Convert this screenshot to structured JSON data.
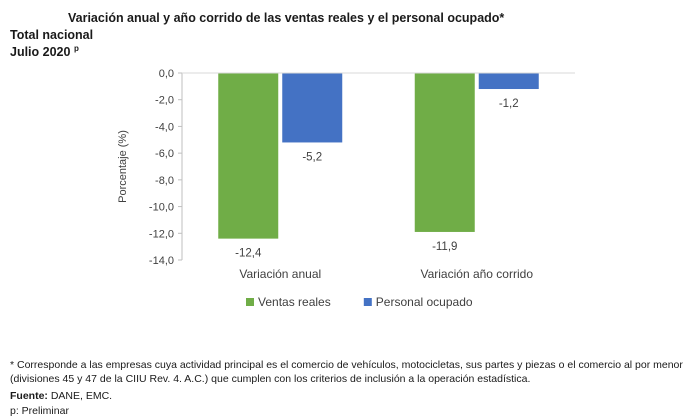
{
  "header": {
    "title": "Variación anual y año corrido de las ventas reales y el personal ocupado*",
    "subtitle_line1": "Total nacional",
    "subtitle_line2": "Julio 2020",
    "subtitle_sup": "p"
  },
  "chart_data": {
    "type": "bar",
    "ylabel": "Porcentaje (%)",
    "ylim": [
      -14,
      0
    ],
    "yticks": [
      "0,0",
      "-2,0",
      "-4,0",
      "-6,0",
      "-8,0",
      "-10,0",
      "-12,0",
      "-14,0"
    ],
    "categories": [
      "Variación anual",
      "Variación año corrido"
    ],
    "series": [
      {
        "name": "Ventas reales",
        "color": "#70ad47",
        "values": [
          -12.4,
          -11.9
        ],
        "labels": [
          "-12,4",
          "-11,9"
        ]
      },
      {
        "name": "Personal ocupado",
        "color": "#4472c4",
        "values": [
          -5.2,
          -1.2
        ],
        "labels": [
          "-5,2",
          "-1,2"
        ]
      }
    ],
    "legend": "bottom",
    "grid": false
  },
  "footer": {
    "note": "* Corresponde a las empresas cuya actividad principal es el comercio de vehículos, motocicletas, sus partes y piezas o el comercio al por menor (divisiones 45 y 47 de la CIIU Rev. 4. A.C.) que cumplen con los criterios de inclusión a la operación estadística.",
    "source_label": "Fuente:",
    "source_text": " DANE, EMC.",
    "prelim": "p: Preliminar"
  }
}
